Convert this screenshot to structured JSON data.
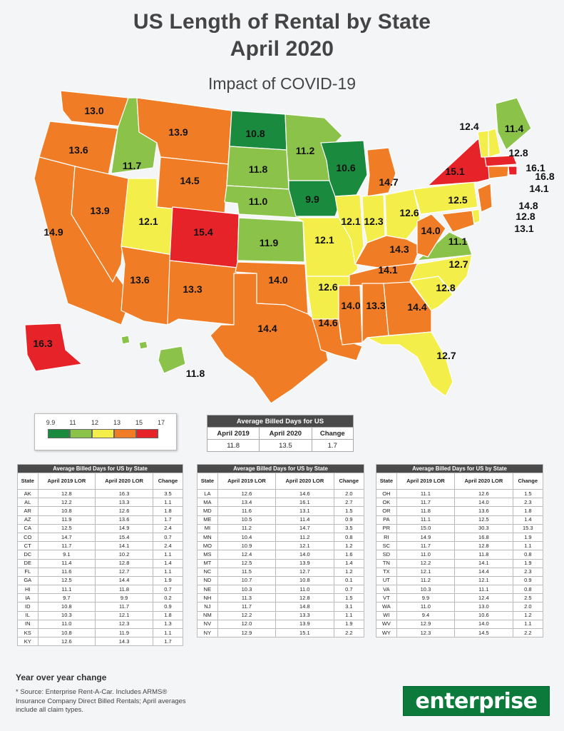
{
  "header": {
    "title_line1": "US Length of Rental by State",
    "title_line2": "April 2020",
    "subtitle": "Impact of COVID-19"
  },
  "colors": {
    "scale_dark_green": "#1a8a3f",
    "scale_light_green": "#8bc34a",
    "scale_yellow": "#f4ee4a",
    "scale_orange": "#f07d25",
    "scale_red": "#e62328",
    "table_header": "#4a4a4a",
    "logo_green": "#0b7a3b"
  },
  "legend": {
    "ticks": [
      "9.9",
      "11",
      "12",
      "13",
      "15",
      "17"
    ]
  },
  "map_labels": {
    "WA": "13.0",
    "OR": "13.6",
    "CA": "14.9",
    "NV": "13.9",
    "ID": "11.7",
    "MT": "13.9",
    "WY": "14.5",
    "UT": "12.1",
    "AZ": "13.6",
    "CO": "15.4",
    "NM": "13.3",
    "ND": "10.8",
    "SD": "11.8",
    "NE": "11.0",
    "KS": "11.9",
    "OK": "14.0",
    "TX": "14.4",
    "MN": "11.2",
    "IA": "9.9",
    "MO": "12.1",
    "AR": "12.6",
    "LA": "14.6",
    "WI": "10.6",
    "IL": "12.1",
    "MI": "14.7",
    "IN": "12.3",
    "OH": "12.6",
    "KY": "14.3",
    "TN": "14.1",
    "MS": "14.0",
    "AL": "13.3",
    "GA": "14.4",
    "FL": "12.7",
    "SC": "12.8",
    "NC": "12.7",
    "VA": "11.1",
    "WV": "14.0",
    "PA": "12.5",
    "NY": "15.1",
    "VT": "12.4",
    "NH": "12.8",
    "ME": "11.4",
    "MA": "16.1",
    "RI": "16.8",
    "CT": "14.1",
    "NJ": "14.8",
    "DE": "12.8",
    "MD": "13.1",
    "AK": "16.3",
    "HI": "11.8"
  },
  "us_summary": {
    "title": "Average Billed Days for US",
    "headers": [
      "April 2019",
      "April 2020",
      "Change"
    ],
    "values": [
      "11.8",
      "13.5",
      "1.7"
    ]
  },
  "state_tables": {
    "title": "Average Billed Days for US by State",
    "headers": [
      "State",
      "April 2019 LOR",
      "April 2020 LOR",
      "Change"
    ],
    "table1": [
      [
        "AK",
        "12.8",
        "16.3",
        "3.5"
      ],
      [
        "AL",
        "12.2",
        "13.3",
        "1.1"
      ],
      [
        "AR",
        "10.8",
        "12.6",
        "1.8"
      ],
      [
        "AZ",
        "11.9",
        "13.6",
        "1.7"
      ],
      [
        "CA",
        "12.5",
        "14.9",
        "2.4"
      ],
      [
        "CO",
        "14.7",
        "15.4",
        "0.7"
      ],
      [
        "CT",
        "11.7",
        "14.1",
        "2.4"
      ],
      [
        "DC",
        "9.1",
        "10.2",
        "1.1"
      ],
      [
        "DE",
        "11.4",
        "12.8",
        "1.4"
      ],
      [
        "FL",
        "11.6",
        "12.7",
        "1.1"
      ],
      [
        "GA",
        "12.5",
        "14.4",
        "1.9"
      ],
      [
        "HI",
        "11.1",
        "11.8",
        "0.7"
      ],
      [
        "IA",
        "9.7",
        "9.9",
        "0.2"
      ],
      [
        "ID",
        "10.8",
        "11.7",
        "0.9"
      ],
      [
        "IL",
        "10.3",
        "12.1",
        "1.8"
      ],
      [
        "IN",
        "11.0",
        "12.3",
        "1.3"
      ],
      [
        "KS",
        "10.8",
        "11.9",
        "1.1"
      ],
      [
        "KY",
        "12.6",
        "14.3",
        "1.7"
      ]
    ],
    "table2": [
      [
        "LA",
        "12.6",
        "14.6",
        "2.0"
      ],
      [
        "MA",
        "13.4",
        "16.1",
        "2.7"
      ],
      [
        "MD",
        "11.6",
        "13.1",
        "1.5"
      ],
      [
        "ME",
        "10.5",
        "11.4",
        "0.9"
      ],
      [
        "MI",
        "11.2",
        "14.7",
        "3.5"
      ],
      [
        "MN",
        "10.4",
        "11.2",
        "0.8"
      ],
      [
        "MO",
        "10.9",
        "12.1",
        "1.2"
      ],
      [
        "MS",
        "12.4",
        "14.0",
        "1.6"
      ],
      [
        "MT",
        "12.5",
        "13.9",
        "1.4"
      ],
      [
        "NC",
        "11.5",
        "12.7",
        "1.2"
      ],
      [
        "ND",
        "10.7",
        "10.8",
        "0.1"
      ],
      [
        "NE",
        "10.3",
        "11.0",
        "0.7"
      ],
      [
        "NH",
        "11.3",
        "12.8",
        "1.5"
      ],
      [
        "NJ",
        "11.7",
        "14.8",
        "3.1"
      ],
      [
        "NM",
        "12.2",
        "13.3",
        "1.1"
      ],
      [
        "NV",
        "12.0",
        "13.9",
        "1.9"
      ],
      [
        "NY",
        "12.9",
        "15.1",
        "2.2"
      ]
    ],
    "table3": [
      [
        "OH",
        "11.1",
        "12.6",
        "1.5"
      ],
      [
        "OK",
        "11.7",
        "14.0",
        "2.3"
      ],
      [
        "OR",
        "11.8",
        "13.6",
        "1.8"
      ],
      [
        "PA",
        "11.1",
        "12.5",
        "1.4"
      ],
      [
        "PR",
        "15.0",
        "30.3",
        "15.3"
      ],
      [
        "RI",
        "14.9",
        "16.8",
        "1.9"
      ],
      [
        "SC",
        "11.7",
        "12.8",
        "1.1"
      ],
      [
        "SD",
        "11.0",
        "11.8",
        "0.8"
      ],
      [
        "TN",
        "12.2",
        "14.1",
        "1.9"
      ],
      [
        "TX",
        "12.1",
        "14.4",
        "2.3"
      ],
      [
        "UT",
        "11.2",
        "12.1",
        "0.9"
      ],
      [
        "VA",
        "10.3",
        "11.1",
        "0.8"
      ],
      [
        "VT",
        "9.9",
        "12.4",
        "2.5"
      ],
      [
        "WA",
        "11.0",
        "13.0",
        "2.0"
      ],
      [
        "WI",
        "9.4",
        "10.6",
        "1.2"
      ],
      [
        "WV",
        "12.9",
        "14.0",
        "1.1"
      ],
      [
        "WY",
        "12.3",
        "14.5",
        "2.2"
      ]
    ]
  },
  "footer": {
    "yoy_label": "Year over year change",
    "source_note": "* Source: Enterprise Rent-A-Car. Includes ARMS® Insurance Company Direct Billed Rentals; April averages include all claim types.",
    "logo_text": "enterprise"
  }
}
